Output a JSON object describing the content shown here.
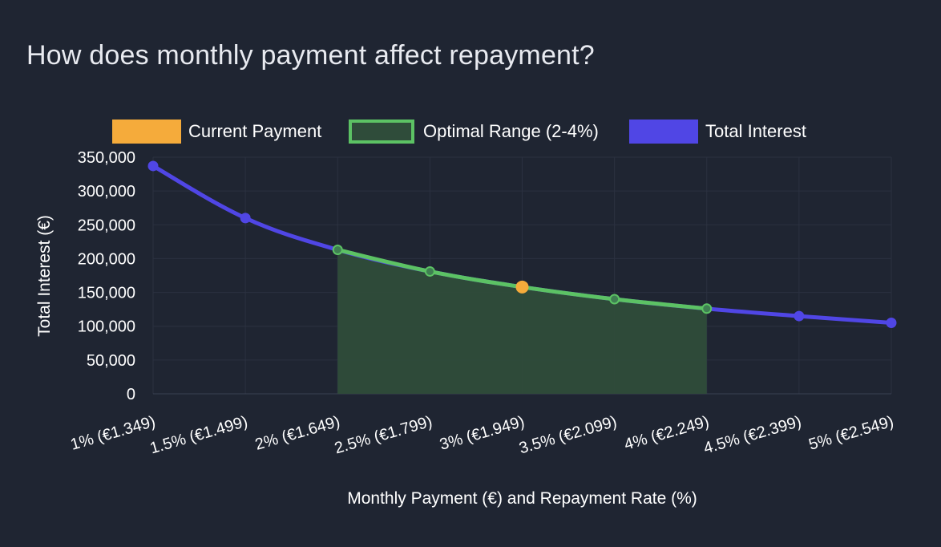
{
  "title": "How does monthly payment affect repayment?",
  "colors": {
    "background": "#1f2532",
    "interest_line": "#5046e5",
    "optimal_line": "#5cc264",
    "optimal_fill": "#2f4c3a",
    "current_marker": "#f5ab3b",
    "grid": "#2b3140"
  },
  "chart_data": {
    "type": "line",
    "categories": [
      "1% (€1.349)",
      "1.5% (€1.499)",
      "2% (€1.649)",
      "2.5% (€1.799)",
      "3% (€1.949)",
      "3.5% (€2.099)",
      "4% (€2.249)",
      "4.5% (€2.399)",
      "5% (€2.549)"
    ],
    "series": [
      {
        "name": "Total Interest",
        "values": [
          337000,
          260000,
          213000,
          181000,
          158000,
          140000,
          126000,
          115000,
          105000
        ]
      }
    ],
    "optimal_range": {
      "label": "Optimal Range (2-4%)",
      "start_index": 2,
      "end_index": 6
    },
    "current_payment": {
      "label": "Current Payment",
      "index": 4
    },
    "xlabel": "Monthly Payment (€) and Repayment Rate (%)",
    "ylabel": "Total Interest (€)",
    "ylim": [
      0,
      350000
    ],
    "yticks": [
      "0",
      "50,000",
      "100,000",
      "150,000",
      "200,000",
      "250,000",
      "300,000",
      "350,000"
    ],
    "legend": [
      "Current Payment",
      "Optimal Range (2-4%)",
      "Total Interest"
    ],
    "legend_position": "top",
    "grid": true
  }
}
